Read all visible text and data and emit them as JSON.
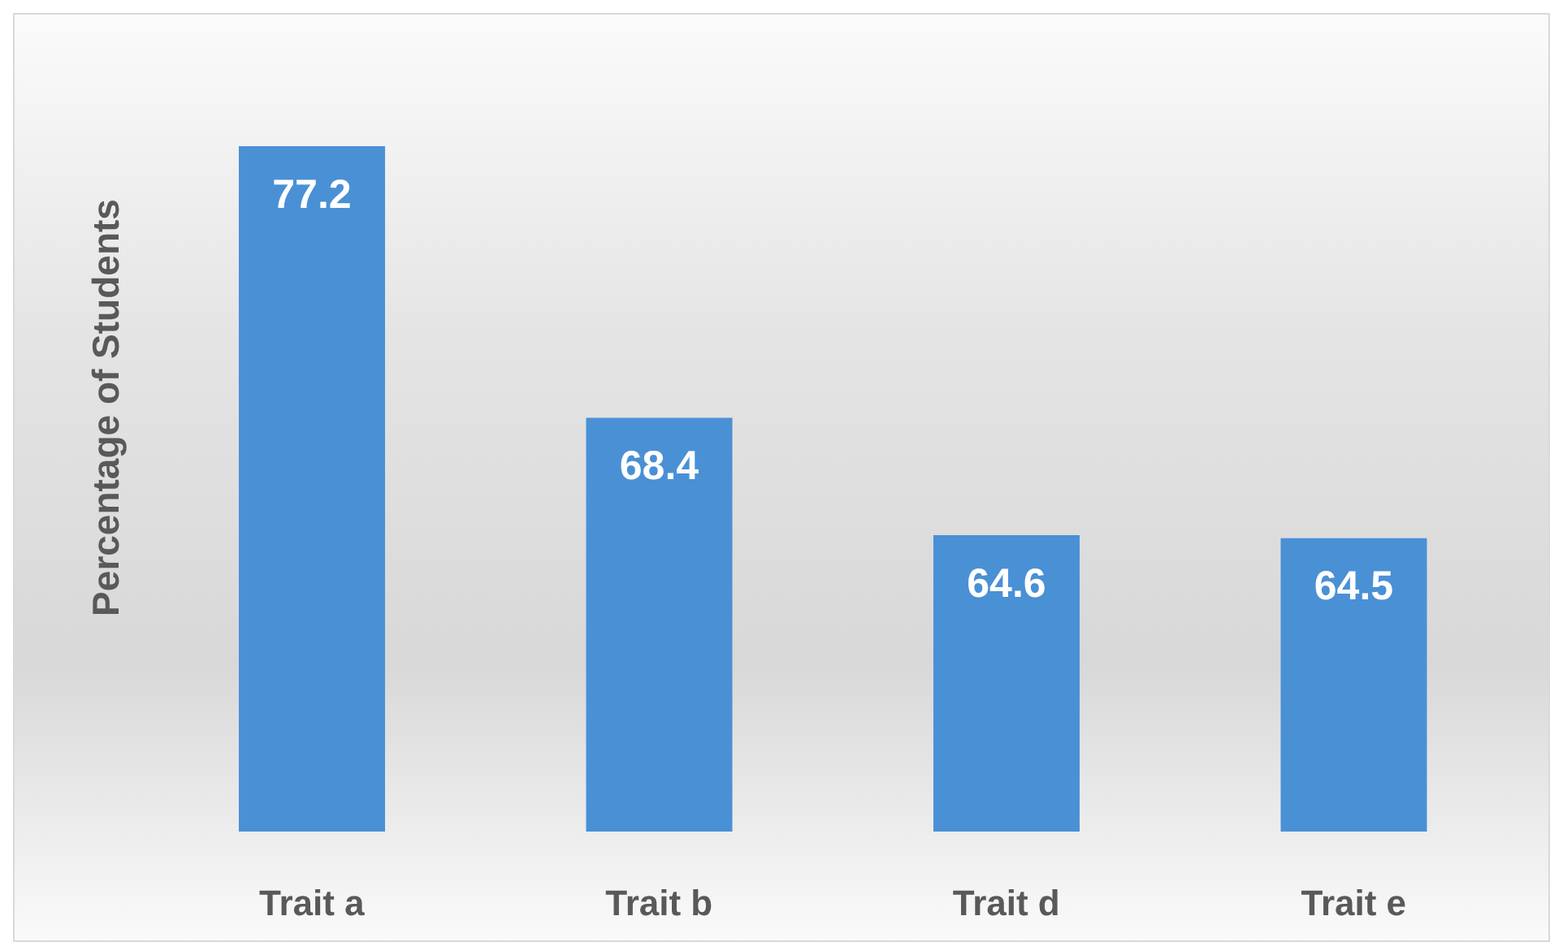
{
  "chart_data": {
    "type": "bar",
    "ylabel": "Percentage of Students",
    "categories": [
      "Trait a",
      "Trait b",
      "Trait d",
      "Trait e"
    ],
    "values": [
      77.2,
      68.4,
      64.6,
      64.5
    ],
    "color": "#4a90d5",
    "ylim": [
      55,
      77.2
    ],
    "data_labels": true,
    "tick_labels": "x"
  }
}
